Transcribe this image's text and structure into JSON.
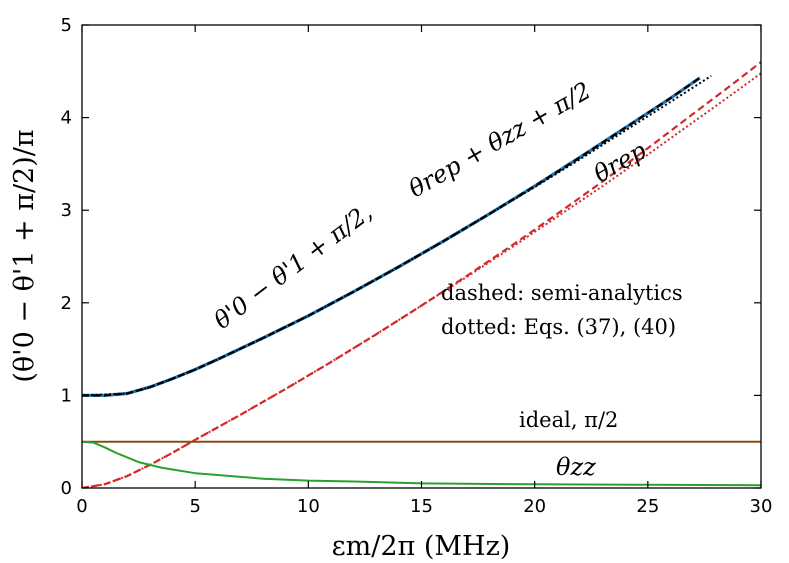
{
  "chart_data": {
    "type": "line",
    "title": "",
    "xlabel": "εm/2π (MHz)",
    "ylabel": "(θ'0 − θ'1 + π/2)/π",
    "xlim": [
      0,
      30
    ],
    "ylim": [
      0,
      5
    ],
    "x_ticks": [
      0,
      5,
      10,
      15,
      20,
      25,
      30
    ],
    "y_ticks": [
      0,
      1,
      2,
      3,
      4,
      5
    ],
    "grid": false,
    "series": [
      {
        "name": "θ'0 − θ'1 + π/2 (full)",
        "color": "#1f77b4",
        "style": "solid",
        "x": [
          0,
          1,
          2,
          3,
          4,
          5,
          6,
          8,
          10,
          12,
          14,
          16,
          18,
          20,
          22,
          24,
          26,
          27.3
        ],
        "y": [
          1.0,
          1.0,
          1.02,
          1.09,
          1.18,
          1.28,
          1.39,
          1.62,
          1.86,
          2.12,
          2.39,
          2.67,
          2.96,
          3.26,
          3.57,
          3.89,
          4.21,
          4.43
        ]
      },
      {
        "name": "θrep + θzz + π/2 (semi-analytics)",
        "color": "#000000",
        "style": "dashed",
        "x": [
          0,
          1,
          2,
          3,
          4,
          5,
          6,
          8,
          10,
          12,
          14,
          16,
          18,
          20,
          22,
          24,
          26,
          27.3
        ],
        "y": [
          1.0,
          1.0,
          1.02,
          1.09,
          1.18,
          1.28,
          1.39,
          1.62,
          1.86,
          2.12,
          2.39,
          2.67,
          2.96,
          3.26,
          3.57,
          3.89,
          4.21,
          4.43
        ]
      },
      {
        "name": "θrep + θzz + π/2 (Eqs. (37), (40))",
        "color": "#000000",
        "style": "dotted",
        "x": [
          0,
          2,
          3,
          4,
          5,
          6,
          8,
          10,
          12,
          14,
          16,
          18,
          20,
          22,
          24,
          26,
          27.8
        ],
        "y": [
          1.0,
          1.02,
          1.09,
          1.18,
          1.28,
          1.39,
          1.62,
          1.86,
          2.12,
          2.39,
          2.67,
          2.96,
          3.25,
          3.55,
          3.86,
          4.17,
          4.45
        ]
      },
      {
        "name": "θrep (semi-analytics)",
        "color": "#d62728",
        "style": "dashed",
        "x": [
          0,
          1,
          2,
          3,
          4,
          5,
          7,
          9,
          11,
          13,
          15,
          17,
          19,
          21,
          23,
          25,
          27,
          29,
          30
        ],
        "y": [
          0.0,
          0.04,
          0.13,
          0.25,
          0.38,
          0.52,
          0.79,
          1.07,
          1.36,
          1.66,
          1.97,
          2.29,
          2.62,
          2.96,
          3.31,
          3.67,
          4.04,
          4.41,
          4.6
        ]
      },
      {
        "name": "θrep (Eqs. (37), (40))",
        "color": "#d62728",
        "style": "dotted",
        "x": [
          0,
          1,
          2,
          3,
          4,
          5,
          7,
          9,
          11,
          13,
          15,
          17,
          19,
          21,
          23,
          25,
          27,
          29,
          30
        ],
        "y": [
          0.0,
          0.04,
          0.13,
          0.25,
          0.38,
          0.52,
          0.79,
          1.07,
          1.36,
          1.66,
          1.97,
          2.28,
          2.6,
          2.93,
          3.26,
          3.6,
          3.95,
          4.3,
          4.48
        ]
      },
      {
        "name": "ideal, π/2",
        "color": "#8c4a12",
        "style": "solid",
        "x": [
          0,
          30
        ],
        "y": [
          0.5,
          0.5
        ]
      },
      {
        "name": "θzz",
        "color": "#2ca02c",
        "style": "solid",
        "x": [
          0,
          0.5,
          1,
          1.5,
          2,
          2.5,
          3,
          3.5,
          4,
          5,
          6,
          7,
          8,
          10,
          12,
          15,
          20,
          25,
          30
        ],
        "y": [
          0.5,
          0.49,
          0.44,
          0.38,
          0.33,
          0.28,
          0.25,
          0.22,
          0.2,
          0.16,
          0.14,
          0.12,
          0.1,
          0.08,
          0.07,
          0.05,
          0.04,
          0.035,
          0.03
        ]
      }
    ],
    "annotations": {
      "full_curve_left": "θ'0 − θ'1 + π/2,",
      "full_curve_right": "θrep + θzz + π/2",
      "theta_rep": "θrep",
      "theta_zz": "θzz",
      "ideal": "ideal, π/2",
      "legend_dashed": "dashed: semi-analytics",
      "legend_dotted": "dotted: Eqs. (37), (40)"
    }
  }
}
